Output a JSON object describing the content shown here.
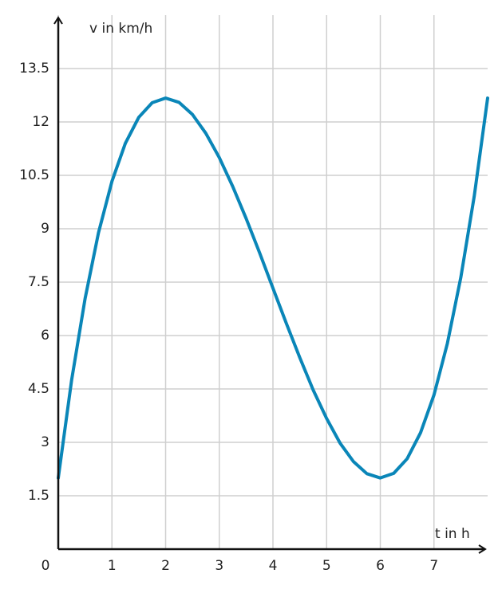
{
  "chart_data": {
    "type": "line",
    "xlabel": "t in h",
    "ylabel": "v in km/h",
    "x": [
      0,
      0.25,
      0.5,
      0.75,
      1,
      1.25,
      1.5,
      1.75,
      2,
      2.25,
      2.5,
      2.75,
      3,
      3.25,
      3.5,
      3.75,
      4,
      4.25,
      4.5,
      4.75,
      5,
      5.25,
      5.5,
      5.75,
      6,
      6.25,
      6.5,
      6.75,
      7,
      7.25,
      7.5,
      7.75,
      8
    ],
    "series": [
      {
        "color": "#0a86b8",
        "values": [
          2,
          4.76,
          7.04,
          8.89,
          10.33,
          11.4,
          12.13,
          12.54,
          12.67,
          12.55,
          12.21,
          11.68,
          11,
          10.19,
          9.29,
          8.33,
          7.33,
          6.34,
          5.38,
          4.47,
          3.67,
          2.98,
          2.46,
          2.12,
          2,
          2.13,
          2.54,
          3.27,
          4.33,
          5.78,
          7.63,
          9.91,
          12.67
        ]
      }
    ],
    "xlim": [
      0,
      8
    ],
    "ylim": [
      0,
      15
    ],
    "xticks": [
      0,
      1,
      2,
      3,
      4,
      5,
      6,
      7
    ],
    "yticks": [
      1.5,
      3,
      4.5,
      6,
      7.5,
      9,
      10.5,
      12,
      13.5
    ],
    "grid": true
  }
}
